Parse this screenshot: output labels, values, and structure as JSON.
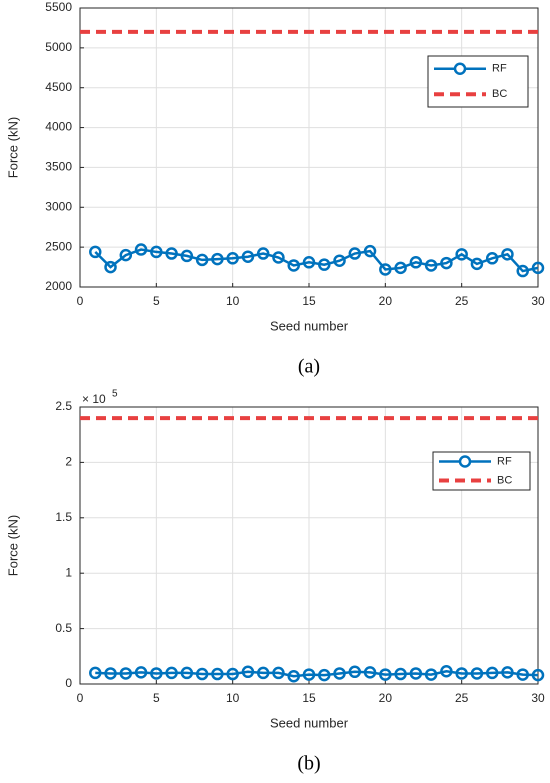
{
  "chart_data": [
    {
      "type": "line",
      "caption": "(a)",
      "xlabel": "Seed number",
      "ylabel": "Force (kN)",
      "xlim": [
        0,
        30
      ],
      "xticks": [
        0,
        5,
        10,
        15,
        20,
        25,
        30
      ],
      "ylim": [
        2000,
        5500
      ],
      "yticks": [
        2000,
        2500,
        3000,
        3500,
        4000,
        4500,
        5000,
        5500
      ],
      "grid": true,
      "legend": "upper right",
      "series": [
        {
          "name": "RF",
          "color": "#0072bd",
          "style": "solid-marker",
          "x": [
            1,
            2,
            3,
            4,
            5,
            6,
            7,
            8,
            9,
            10,
            11,
            12,
            13,
            14,
            15,
            16,
            17,
            18,
            19,
            20,
            21,
            22,
            23,
            24,
            25,
            26,
            27,
            28,
            29,
            30
          ],
          "values": [
            2440,
            2250,
            2400,
            2470,
            2440,
            2420,
            2390,
            2340,
            2350,
            2360,
            2380,
            2420,
            2370,
            2270,
            2310,
            2280,
            2330,
            2420,
            2450,
            2220,
            2240,
            2310,
            2270,
            2300,
            2410,
            2290,
            2360,
            2410,
            2200,
            2240
          ]
        },
        {
          "name": "BC",
          "color": "#e84040",
          "style": "dashed",
          "x": [
            0,
            30
          ],
          "values": [
            5200,
            5200
          ]
        }
      ]
    },
    {
      "type": "line",
      "caption": "(b)",
      "xlabel": "Seed number",
      "ylabel": "Force (kN)",
      "y_exponent": {
        "base": "× 10",
        "power": "5"
      },
      "xlim": [
        0,
        30
      ],
      "xticks": [
        0,
        5,
        10,
        15,
        20,
        25,
        30
      ],
      "ylim": [
        0,
        2.5
      ],
      "yticks": [
        0,
        0.5,
        1,
        1.5,
        2,
        2.5
      ],
      "grid": true,
      "legend": "upper right",
      "series": [
        {
          "name": "RF",
          "color": "#0072bd",
          "style": "solid-marker",
          "x": [
            1,
            2,
            3,
            4,
            5,
            6,
            7,
            8,
            9,
            10,
            11,
            12,
            13,
            14,
            15,
            16,
            17,
            18,
            19,
            20,
            21,
            22,
            23,
            24,
            25,
            26,
            27,
            28,
            29,
            30
          ],
          "values": [
            0.1,
            0.095,
            0.095,
            0.105,
            0.095,
            0.1,
            0.1,
            0.09,
            0.09,
            0.09,
            0.11,
            0.1,
            0.1,
            0.07,
            0.085,
            0.08,
            0.095,
            0.11,
            0.105,
            0.085,
            0.09,
            0.095,
            0.085,
            0.115,
            0.095,
            0.095,
            0.1,
            0.105,
            0.085,
            0.08
          ]
        },
        {
          "name": "BC",
          "color": "#e84040",
          "style": "dashed",
          "x": [
            0,
            30
          ],
          "values": [
            2.4,
            2.4
          ]
        }
      ]
    }
  ]
}
